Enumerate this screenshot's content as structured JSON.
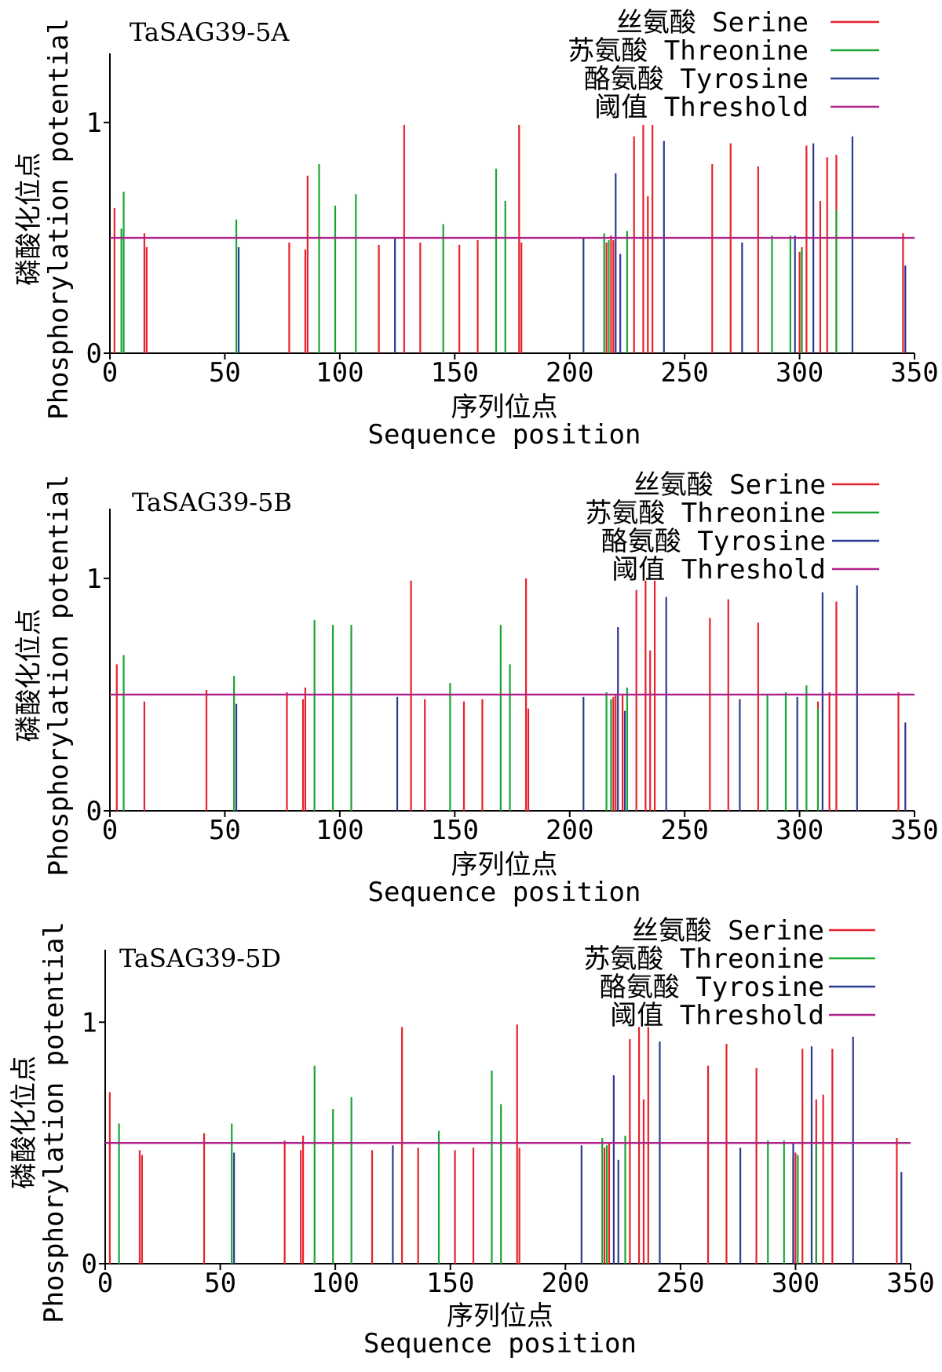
{
  "chart_data": [
    {
      "type": "bar",
      "title": "TaSAG39-5A",
      "xlabel_cn": "序列位点",
      "xlabel_en": "Sequence position",
      "ylabel_cn": "磷酸化位点",
      "ylabel_en": "Phosphorylation potential",
      "xlim": [
        0,
        350
      ],
      "ylim": [
        0,
        1.3
      ],
      "xticks": [
        "0",
        "50",
        "100",
        "150",
        "200",
        "250",
        "300",
        "350"
      ],
      "xtick_values": [
        0,
        50,
        100,
        150,
        200,
        250,
        300,
        350
      ],
      "yticks": [
        "0",
        "1"
      ],
      "ytick_values": [
        0,
        1
      ],
      "threshold": 0.5,
      "legend": [
        {
          "label": "丝氨酸 Serine",
          "color": "#e8212b"
        },
        {
          "label": "苏氨酸 Threonine",
          "color": "#1aa534"
        },
        {
          "label": "酪氨酸 Tyrosine",
          "color": "#2d3a96"
        },
        {
          "label": "阈值 Threshold",
          "color": "#b0208a"
        }
      ],
      "series": [
        {
          "name": "Serine",
          "color": "#e8212b",
          "x": [
            2,
            15,
            16,
            78,
            85,
            86,
            117,
            128,
            135,
            152,
            160,
            178,
            179,
            216,
            218,
            219,
            228,
            232,
            234,
            236,
            262,
            270,
            282,
            300,
            301,
            303,
            309,
            312,
            316,
            345
          ],
          "y": [
            0.63,
            0.52,
            0.46,
            0.48,
            0.45,
            0.77,
            0.47,
            0.99,
            0.48,
            0.47,
            0.49,
            0.99,
            0.48,
            0.48,
            0.51,
            0.49,
            0.94,
            0.99,
            0.68,
            0.99,
            0.82,
            0.91,
            0.81,
            0.44,
            0.46,
            0.9,
            0.66,
            0.85,
            0.86,
            0.52
          ]
        },
        {
          "name": "Threonine",
          "color": "#1aa534",
          "x": [
            5,
            6,
            55,
            91,
            98,
            107,
            145,
            168,
            172,
            215,
            217,
            225,
            288,
            296,
            301,
            316
          ],
          "y": [
            0.54,
            0.7,
            0.58,
            0.82,
            0.64,
            0.69,
            0.56,
            0.8,
            0.66,
            0.52,
            0.49,
            0.53,
            0.51,
            0.51,
            0.45,
            0.62
          ]
        },
        {
          "name": "Tyrosine",
          "color": "#2d3a96",
          "x": [
            56,
            124,
            206,
            220,
            222,
            241,
            275,
            298,
            306,
            323,
            346
          ],
          "y": [
            0.46,
            0.5,
            0.5,
            0.78,
            0.43,
            0.92,
            0.48,
            0.51,
            0.91,
            0.94,
            0.38
          ]
        }
      ]
    },
    {
      "type": "bar",
      "title": "TaSAG39-5B",
      "xlabel_cn": "序列位点",
      "xlabel_en": "Sequence position",
      "ylabel_cn": "磷酸化位点",
      "ylabel_en": "Phosphorylation potential",
      "xlim": [
        0,
        350
      ],
      "ylim": [
        0,
        1.3
      ],
      "xticks": [
        "0",
        "50",
        "100",
        "150",
        "200",
        "250",
        "300",
        "350"
      ],
      "xtick_values": [
        0,
        50,
        100,
        150,
        200,
        250,
        300,
        350
      ],
      "yticks": [
        "0",
        "1"
      ],
      "ytick_values": [
        0,
        1
      ],
      "threshold": 0.5,
      "legend": [
        {
          "label": "丝氨酸 Serine",
          "color": "#e8212b"
        },
        {
          "label": "苏氨酸 Threonine",
          "color": "#1aa534"
        },
        {
          "label": "酪氨酸 Tyrosine",
          "color": "#2d3a96"
        },
        {
          "label": "阈值 Threshold",
          "color": "#b0208a"
        }
      ],
      "series": [
        {
          "name": "Serine",
          "color": "#e8212b",
          "x": [
            3,
            15,
            42,
            77,
            84,
            85,
            131,
            137,
            154,
            162,
            181,
            182,
            219,
            220,
            223,
            229,
            233,
            235,
            237,
            261,
            269,
            282,
            308,
            313,
            316,
            343
          ],
          "y": [
            0.63,
            0.47,
            0.52,
            0.51,
            0.48,
            0.53,
            0.99,
            0.48,
            0.47,
            0.48,
            1.0,
            0.44,
            0.49,
            0.5,
            0.5,
            0.95,
            0.99,
            0.69,
            0.99,
            0.83,
            0.91,
            0.81,
            0.47,
            0.51,
            0.9,
            0.51
          ]
        },
        {
          "name": "Threonine",
          "color": "#1aa534",
          "x": [
            6,
            54,
            89,
            97,
            105,
            148,
            170,
            174,
            216,
            218,
            225,
            286,
            294,
            303,
            308
          ],
          "y": [
            0.67,
            0.58,
            0.82,
            0.8,
            0.8,
            0.55,
            0.8,
            0.63,
            0.51,
            0.48,
            0.53,
            0.5,
            0.51,
            0.54,
            0.44
          ]
        },
        {
          "name": "Tyrosine",
          "color": "#2d3a96",
          "x": [
            55,
            125,
            206,
            221,
            224,
            242,
            274,
            299,
            310,
            325,
            346
          ],
          "y": [
            0.46,
            0.49,
            0.49,
            0.79,
            0.43,
            0.92,
            0.48,
            0.49,
            0.94,
            0.97,
            0.38
          ]
        }
      ]
    },
    {
      "type": "bar",
      "title": "TaSAG39-5D",
      "xlabel_cn": "序列位点",
      "xlabel_en": "Sequence position",
      "ylabel_cn": "磷酸化位点",
      "ylabel_en": "Phosphorylation potential",
      "xlim": [
        0,
        350
      ],
      "ylim": [
        0,
        1.3
      ],
      "xticks": [
        "0",
        "50",
        "100",
        "150",
        "200",
        "250",
        "300",
        "350"
      ],
      "xtick_values": [
        0,
        50,
        100,
        150,
        200,
        250,
        300,
        350
      ],
      "yticks": [
        "0",
        "1"
      ],
      "ytick_values": [
        0,
        1
      ],
      "threshold": 0.5,
      "legend": [
        {
          "label": "丝氨酸 Serine",
          "color": "#e8212b"
        },
        {
          "label": "苏氨酸 Threonine",
          "color": "#1aa534"
        },
        {
          "label": "酪氨酸 Tyrosine",
          "color": "#2d3a96"
        },
        {
          "label": "阈值 Threshold",
          "color": "#b0208a"
        }
      ],
      "series": [
        {
          "name": "Serine",
          "color": "#e8212b",
          "x": [
            2,
            15,
            16,
            43,
            78,
            85,
            86,
            116,
            129,
            136,
            152,
            160,
            179,
            180,
            217,
            219,
            228,
            232,
            234,
            236,
            262,
            270,
            283,
            299,
            300,
            303,
            309,
            312,
            316,
            344
          ],
          "y": [
            0.71,
            0.47,
            0.45,
            0.54,
            0.51,
            0.47,
            0.53,
            0.47,
            0.98,
            0.48,
            0.47,
            0.48,
            0.99,
            0.48,
            0.48,
            0.5,
            0.93,
            0.98,
            0.68,
            0.98,
            0.82,
            0.91,
            0.81,
            0.44,
            0.46,
            0.89,
            0.68,
            0.7,
            0.89,
            0.52
          ]
        },
        {
          "name": "Threonine",
          "color": "#1aa534",
          "x": [
            6,
            55,
            91,
            99,
            107,
            145,
            168,
            172,
            216,
            218,
            226,
            288,
            295,
            301,
            309
          ],
          "y": [
            0.58,
            0.58,
            0.82,
            0.64,
            0.69,
            0.55,
            0.8,
            0.66,
            0.52,
            0.49,
            0.53,
            0.51,
            0.51,
            0.45,
            0.5
          ]
        },
        {
          "name": "Tyrosine",
          "color": "#2d3a96",
          "x": [
            56,
            125,
            207,
            221,
            223,
            241,
            276,
            299,
            307,
            325,
            346
          ],
          "y": [
            0.46,
            0.49,
            0.49,
            0.78,
            0.43,
            0.92,
            0.48,
            0.5,
            0.9,
            0.94,
            0.38
          ]
        }
      ]
    }
  ]
}
